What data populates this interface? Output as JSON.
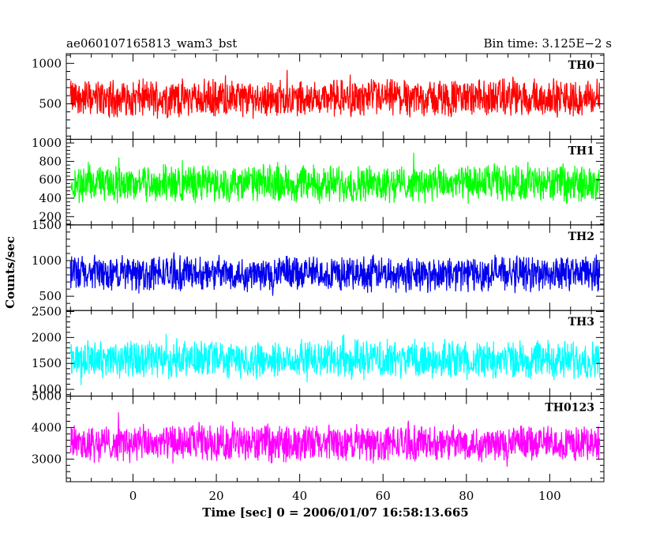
{
  "header": {
    "title_left": "ae060107165813_wam3_bst",
    "title_right": "Bin time: 3.125E−2  s"
  },
  "chart_data": {
    "type": "line",
    "xlabel": "Time [sec] 0 = 2006/01/07 16:58:13.665",
    "ylabel": "Counts/sec",
    "xlim": [
      -16,
      113
    ],
    "data_x_range": [
      -15,
      112
    ],
    "x_ticks": [
      0,
      20,
      40,
      60,
      80,
      100
    ],
    "series": [
      {
        "name": "TH0",
        "color": "#ff0000",
        "ylim": [
          60,
          1120
        ],
        "y_ticks": [
          500,
          1000
        ],
        "mean": 570,
        "spread": 390,
        "noise": 130
      },
      {
        "name": "TH1",
        "color": "#00ff00",
        "ylim": [
          110,
          1040
        ],
        "y_ticks": [
          200,
          400,
          600,
          800,
          1000
        ],
        "mean": 560,
        "spread": 330,
        "noise": 120
      },
      {
        "name": "TH2",
        "color": "#0000ee",
        "ylim": [
          300,
          1500
        ],
        "y_ticks": [
          500,
          1000,
          1500
        ],
        "mean": 820,
        "spread": 420,
        "noise": 150
      },
      {
        "name": "TH3",
        "color": "#00ffff",
        "ylim": [
          870,
          2520
        ],
        "y_ticks": [
          1000,
          1500,
          2000,
          2500
        ],
        "mean": 1580,
        "spread": 620,
        "noise": 200
      },
      {
        "name": "TH0123",
        "color": "#ff00ff",
        "ylim": [
          2280,
          5000
        ],
        "y_ticks": [
          3000,
          4000,
          5000
        ],
        "mean": 3500,
        "spread": 1000,
        "noise": 300
      }
    ]
  }
}
